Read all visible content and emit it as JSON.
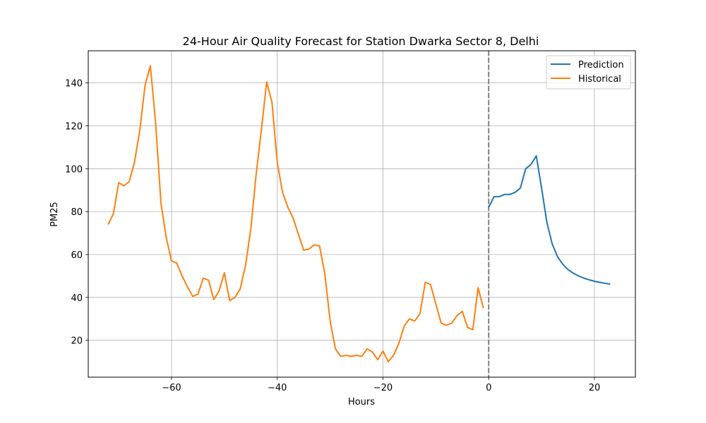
{
  "chart_data": {
    "type": "line",
    "title": "24-Hour Air Quality Forecast for Station Dwarka Sector 8, Delhi",
    "xlabel": "Hours",
    "ylabel": "PM25",
    "xlim": [
      -75.75,
      27.75
    ],
    "ylim": [
      2.8,
      155.0
    ],
    "xticks": [
      -60,
      -40,
      -20,
      0,
      20
    ],
    "xtick_labels": [
      "−60",
      "−40",
      "−20",
      "0",
      "20"
    ],
    "yticks": [
      20,
      40,
      60,
      80,
      100,
      120,
      140
    ],
    "ytick_labels": [
      "20",
      "40",
      "60",
      "80",
      "100",
      "120",
      "140"
    ],
    "grid": true,
    "legend_position": "upper right",
    "vline": {
      "x": 0,
      "style": "dashed",
      "color": "#808080"
    },
    "series": [
      {
        "name": "Prediction",
        "color": "#1f77b4",
        "x": [
          0,
          1,
          2,
          3,
          4,
          5,
          6,
          7,
          8,
          9,
          10,
          11,
          12,
          13,
          14,
          15,
          16,
          17,
          18,
          19,
          20,
          21,
          22,
          23
        ],
        "y": [
          82.0,
          87.0,
          87.0,
          88.0,
          88.0,
          89.0,
          91.0,
          100.0,
          102.0,
          106.0,
          91.0,
          75.0,
          65.0,
          59.0,
          55.5,
          53.0,
          51.3,
          50.0,
          49.0,
          48.2,
          47.5,
          47.0,
          46.6,
          46.2
        ]
      },
      {
        "name": "Historical",
        "color": "#ff7f0e",
        "x": [
          -72,
          -71,
          -70,
          -69,
          -68,
          -67,
          -66,
          -65,
          -64,
          -63,
          -62,
          -61,
          -60,
          -59,
          -58,
          -57,
          -56,
          -55,
          -54,
          -53,
          -52,
          -51,
          -50,
          -49,
          -48,
          -47,
          -46,
          -45,
          -44,
          -43,
          -42,
          -41,
          -40,
          -39,
          -38,
          -37,
          -36,
          -35,
          -34,
          -33,
          -32,
          -31,
          -30,
          -29,
          -28,
          -27,
          -26,
          -25,
          -24,
          -23,
          -22,
          -21,
          -20,
          -19,
          -18,
          -17,
          -16,
          -15,
          -14,
          -13,
          -12,
          -11,
          -10,
          -9,
          -8,
          -7,
          -6,
          -5,
          -4,
          -3,
          -2,
          -1
        ],
        "y": [
          74.0,
          79.0,
          93.5,
          92.0,
          94.0,
          103.0,
          118.0,
          139.0,
          148.0,
          121.0,
          84.0,
          68.0,
          57.0,
          56.0,
          50.0,
          45.0,
          40.5,
          41.5,
          49.0,
          48.0,
          39.0,
          43.0,
          51.5,
          38.5,
          40.0,
          44.0,
          55.0,
          72.0,
          97.0,
          118.0,
          140.5,
          131.0,
          103.0,
          89.0,
          82.0,
          77.0,
          69.5,
          62.0,
          62.5,
          64.5,
          64.0,
          51.0,
          29.0,
          16.0,
          12.5,
          13.0,
          12.5,
          13.0,
          12.5,
          16.0,
          14.5,
          11.0,
          15.0,
          10.0,
          13.0,
          18.5,
          26.5,
          30.0,
          29.0,
          32.5,
          47.0,
          46.0,
          37.0,
          28.0,
          27.0,
          28.0,
          31.5,
          33.5,
          26.0,
          25.0,
          44.5,
          35.0
        ]
      }
    ]
  }
}
